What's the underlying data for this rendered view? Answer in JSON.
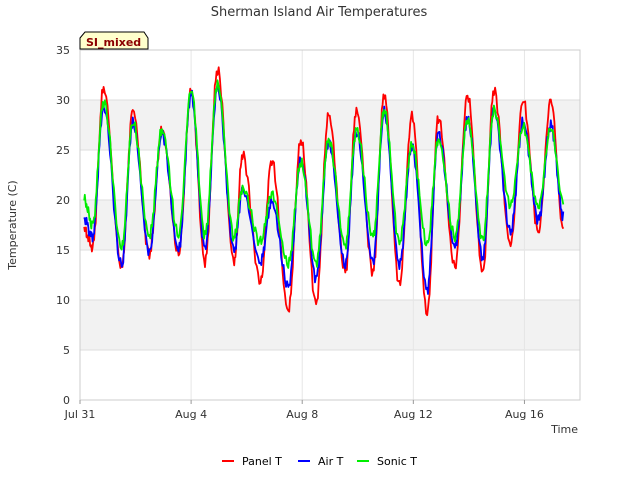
{
  "chart_data": {
    "type": "line",
    "title": "Sherman Island Air Temperatures",
    "xlabel": "Time",
    "ylabel": "Temperature (C)",
    "badge": "SI_mixed",
    "ylim": [
      0,
      35
    ],
    "xlim_days": [
      0,
      18
    ],
    "yticks": [
      0,
      5,
      10,
      15,
      20,
      25,
      30,
      35
    ],
    "xticks": [
      {
        "day": 0,
        "label": "Jul 31"
      },
      {
        "day": 4,
        "label": "Aug 4"
      },
      {
        "day": 8,
        "label": "Aug 8"
      },
      {
        "day": 12,
        "label": "Aug 12"
      },
      {
        "day": 16,
        "label": "Aug 16"
      }
    ],
    "grid": "horizontal bands",
    "legend_position": "bottom",
    "series": [
      {
        "name": "Panel T",
        "color": "#ff0000",
        "points": [
          [
            0.15,
            17
          ],
          [
            0.45,
            15.3
          ],
          [
            0.85,
            31.2
          ],
          [
            1.5,
            13.2
          ],
          [
            1.9,
            29
          ],
          [
            2.5,
            14.6
          ],
          [
            2.95,
            27
          ],
          [
            3.55,
            14.6
          ],
          [
            4.0,
            31
          ],
          [
            4.5,
            13.8
          ],
          [
            4.95,
            33
          ],
          [
            5.55,
            13.8
          ],
          [
            5.85,
            24.5
          ],
          [
            6.5,
            11.8
          ],
          [
            6.9,
            24
          ],
          [
            7.5,
            8.9
          ],
          [
            7.95,
            26
          ],
          [
            8.5,
            9.7
          ],
          [
            8.95,
            28.5
          ],
          [
            9.55,
            12.8
          ],
          [
            9.95,
            29
          ],
          [
            10.55,
            12.8
          ],
          [
            10.95,
            30.5
          ],
          [
            11.5,
            11.5
          ],
          [
            11.95,
            28.5
          ],
          [
            12.5,
            8.7
          ],
          [
            12.9,
            28.2
          ],
          [
            13.5,
            13.3
          ],
          [
            13.95,
            30.5
          ],
          [
            14.5,
            12.8
          ],
          [
            14.9,
            31
          ],
          [
            15.5,
            15.5
          ],
          [
            15.95,
            30
          ],
          [
            16.5,
            16.8
          ],
          [
            16.95,
            30
          ],
          [
            17.4,
            17
          ]
        ]
      },
      {
        "name": "Air T",
        "color": "#0000ff",
        "points": [
          [
            0.15,
            18.2
          ],
          [
            0.45,
            16.3
          ],
          [
            0.85,
            29.3
          ],
          [
            1.5,
            13.4
          ],
          [
            1.9,
            27.7
          ],
          [
            2.5,
            14.8
          ],
          [
            2.95,
            26.7
          ],
          [
            3.55,
            15
          ],
          [
            4.0,
            30.6
          ],
          [
            4.5,
            15.2
          ],
          [
            4.95,
            31.2
          ],
          [
            5.55,
            15
          ],
          [
            5.85,
            21
          ],
          [
            6.5,
            13.8
          ],
          [
            6.9,
            19.8
          ],
          [
            7.5,
            11.3
          ],
          [
            7.95,
            24
          ],
          [
            8.5,
            12.2
          ],
          [
            8.95,
            25.8
          ],
          [
            9.55,
            13.5
          ],
          [
            9.95,
            26.8
          ],
          [
            10.55,
            13.8
          ],
          [
            10.95,
            28.8
          ],
          [
            11.5,
            13.5
          ],
          [
            11.95,
            25.4
          ],
          [
            12.5,
            11
          ],
          [
            12.9,
            26.6
          ],
          [
            13.5,
            15.3
          ],
          [
            13.95,
            28.2
          ],
          [
            14.5,
            14.2
          ],
          [
            14.9,
            29
          ],
          [
            15.5,
            16.8
          ],
          [
            15.95,
            27.8
          ],
          [
            16.5,
            18
          ],
          [
            16.95,
            27.5
          ],
          [
            17.4,
            18.4
          ]
        ]
      },
      {
        "name": "Sonic T",
        "color": "#00ee00",
        "points": [
          [
            0.15,
            20
          ],
          [
            0.45,
            17.5
          ],
          [
            0.85,
            29.8
          ],
          [
            1.5,
            15.2
          ],
          [
            1.9,
            27.8
          ],
          [
            2.5,
            16.4
          ],
          [
            2.95,
            27
          ],
          [
            3.55,
            16.5
          ],
          [
            4.0,
            31
          ],
          [
            4.5,
            16.5
          ],
          [
            4.95,
            31.6
          ],
          [
            5.55,
            16.3
          ],
          [
            5.85,
            21.2
          ],
          [
            6.5,
            15.8
          ],
          [
            6.9,
            20.6
          ],
          [
            7.5,
            13.6
          ],
          [
            7.95,
            23.7
          ],
          [
            8.5,
            13.7
          ],
          [
            8.95,
            26
          ],
          [
            9.55,
            15.5
          ],
          [
            9.95,
            27
          ],
          [
            10.55,
            16.3
          ],
          [
            10.95,
            29
          ],
          [
            11.5,
            15.8
          ],
          [
            11.95,
            25.5
          ],
          [
            12.5,
            15.5
          ],
          [
            12.9,
            26
          ],
          [
            13.5,
            16.3
          ],
          [
            13.95,
            28
          ],
          [
            14.5,
            16
          ],
          [
            14.9,
            29
          ],
          [
            15.5,
            19.5
          ],
          [
            15.95,
            27.3
          ],
          [
            16.5,
            19.3
          ],
          [
            16.95,
            27.2
          ],
          [
            17.4,
            19.8
          ]
        ]
      }
    ]
  }
}
